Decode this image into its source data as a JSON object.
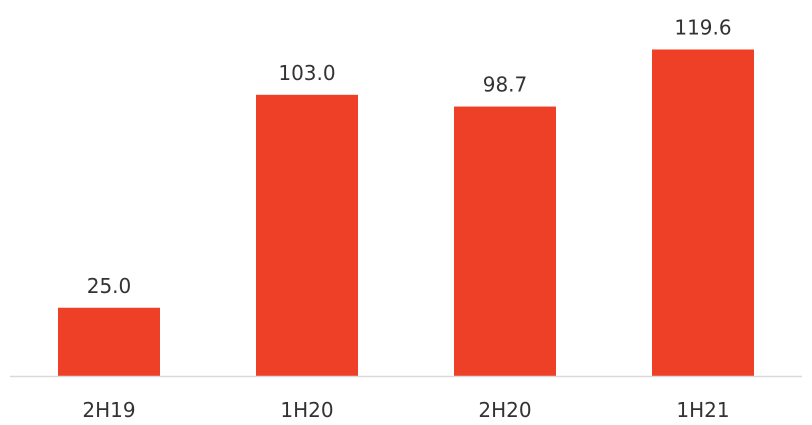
{
  "chart_data": {
    "type": "bar",
    "categories": [
      "2H19",
      "1H20",
      "2H20",
      "1H21"
    ],
    "values": [
      25.0,
      103.0,
      98.7,
      119.6
    ],
    "value_labels": [
      "25.0",
      "103.0",
      "98.7",
      "119.6"
    ],
    "ylim": [
      0,
      130
    ],
    "grid": false,
    "legend": "none",
    "colors": {
      "bar": "#EE4027",
      "axis": "#D9D9D9",
      "text": "#333333"
    }
  }
}
